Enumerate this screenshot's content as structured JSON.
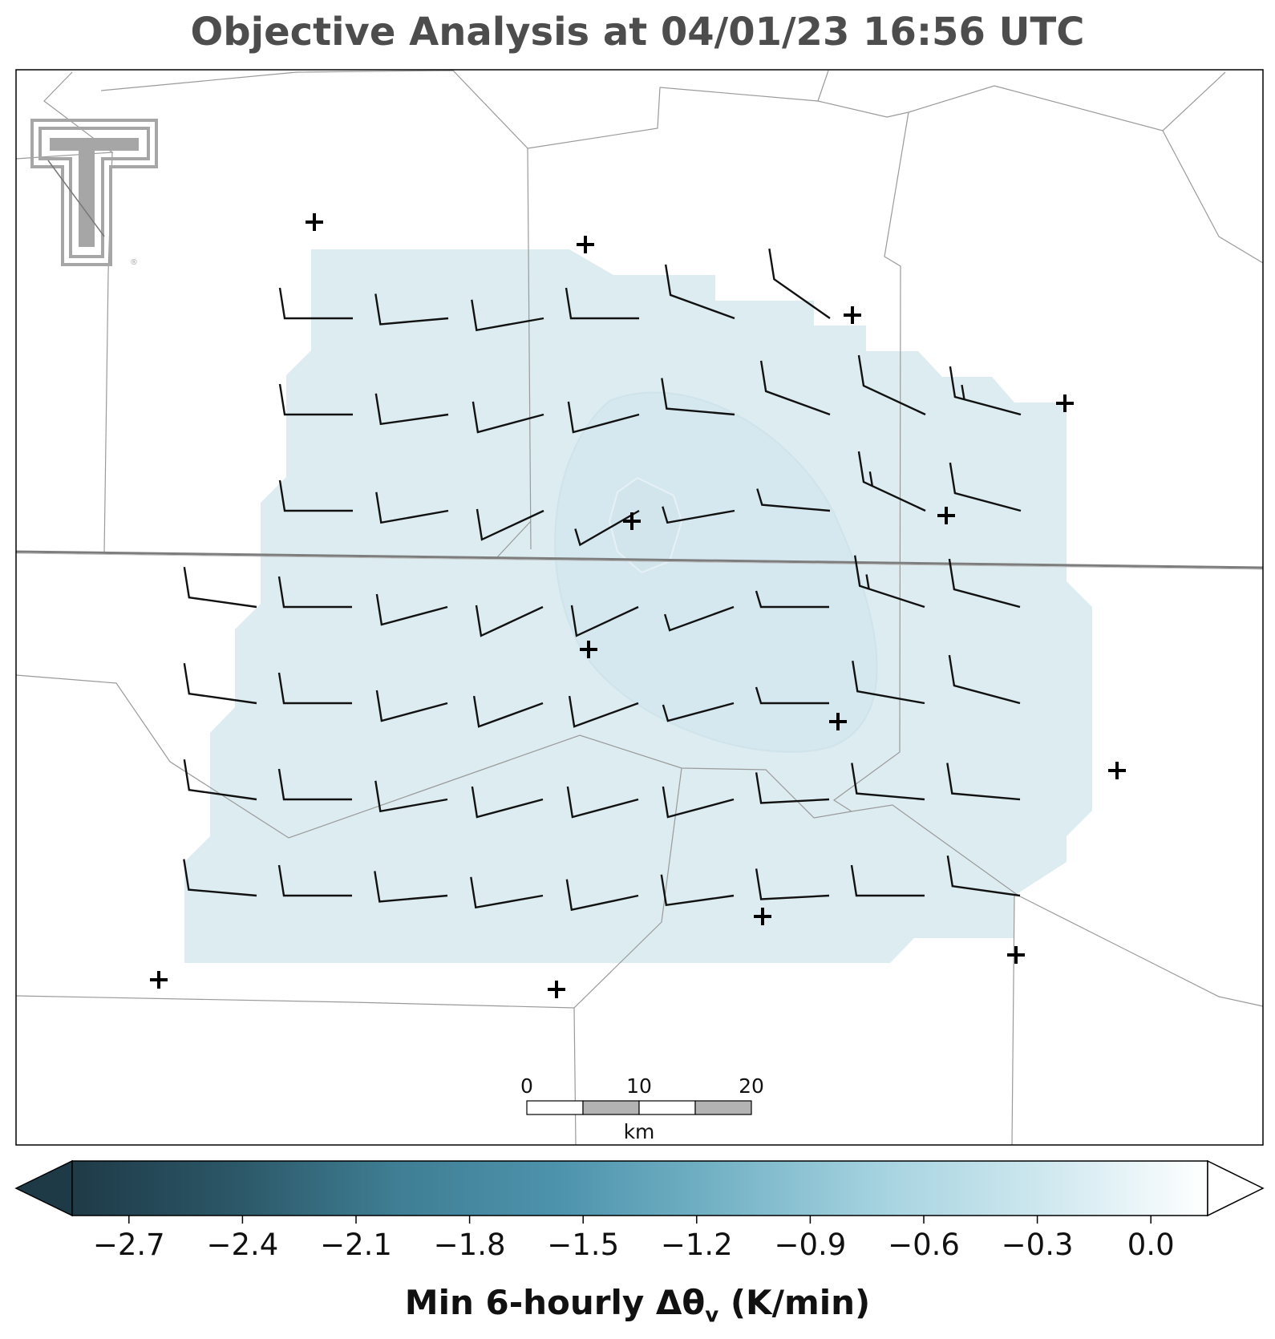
{
  "title": "Objective Analysis at 04/01/23 16:56 UTC",
  "colors": {
    "analysis_fill": "#dcecf1",
    "analysis_inner": "#d5e8ef",
    "county_lines": "#9a9a9a",
    "state_line": "#7d7d7d",
    "barb": "#111111",
    "station": "#000000",
    "logo": "#a6a6a6"
  },
  "logo": {
    "name": "Texas Tech double-T logo"
  },
  "stations": [
    [
      392,
      277
    ],
    [
      730,
      305
    ],
    [
      1063,
      393
    ],
    [
      1328,
      503
    ],
    [
      788,
      650
    ],
    [
      1180,
      643
    ],
    [
      734,
      810
    ],
    [
      1045,
      900
    ],
    [
      1393,
      961
    ],
    [
      951,
      1143
    ],
    [
      1267,
      1191
    ],
    [
      198,
      1222
    ],
    [
      694,
      1234
    ]
  ],
  "wind_barbs": {
    "barb_unit_note": "",
    "rows": [
      [
        [
          0,
          10
        ],
        [
          -5,
          10
        ],
        [
          -10,
          10
        ],
        [
          0,
          10
        ],
        [
          20,
          10
        ],
        [
          35,
          10
        ],
        null,
        null
      ],
      [
        [
          0,
          10
        ],
        [
          -8,
          10
        ],
        [
          -15,
          10
        ],
        [
          -15,
          10
        ],
        [
          5,
          10
        ],
        [
          20,
          10
        ],
        [
          25,
          10
        ],
        [
          15,
          15
        ]
      ],
      [
        [
          0,
          10
        ],
        [
          -10,
          10
        ],
        [
          -25,
          10
        ],
        [
          -30,
          5
        ],
        [
          -10,
          5
        ],
        [
          5,
          5
        ],
        [
          25,
          15
        ],
        [
          15,
          10
        ]
      ],
      [
        [
          8,
          10
        ],
        [
          0,
          10
        ],
        [
          -15,
          10
        ],
        [
          -25,
          10
        ],
        [
          -25,
          10
        ],
        [
          -20,
          5
        ],
        [
          0,
          5
        ],
        [
          18,
          15
        ],
        [
          15,
          10
        ]
      ],
      [
        [
          8,
          10
        ],
        [
          0,
          10
        ],
        [
          -15,
          10
        ],
        [
          -20,
          10
        ],
        [
          -20,
          10
        ],
        [
          -15,
          5
        ],
        [
          0,
          5
        ],
        [
          10,
          10
        ],
        [
          15,
          10
        ]
      ],
      [
        [
          8,
          10
        ],
        [
          0,
          10
        ],
        [
          -10,
          10
        ],
        [
          -15,
          10
        ],
        [
          -15,
          10
        ],
        [
          -15,
          10
        ],
        [
          -3,
          10
        ],
        [
          5,
          10
        ],
        [
          5,
          10
        ]
      ],
      [
        [
          5,
          10
        ],
        [
          0,
          10
        ],
        [
          -5,
          10
        ],
        [
          -10,
          10
        ],
        [
          -12,
          10
        ],
        [
          -8,
          10
        ],
        [
          -3,
          10
        ],
        [
          0,
          10
        ],
        [
          8,
          10
        ]
      ]
    ]
  },
  "scale_bar": {
    "labels": [
      "0",
      "10",
      "20"
    ],
    "unit": "km"
  },
  "colorbar": {
    "label_main": "Min 6-hourly Δθ",
    "label_sub": "v",
    "label_tail": " (K/min)",
    "vmin": -2.85,
    "vmax": 0.15,
    "ticks": [
      "−2.7",
      "−2.4",
      "−2.1",
      "−1.8",
      "−1.5",
      "−1.2",
      "−0.9",
      "−0.6",
      "−0.3",
      "0.0"
    ],
    "tick_values": [
      -2.7,
      -2.4,
      -2.1,
      -1.8,
      -1.5,
      -1.2,
      -0.9,
      -0.6,
      -0.3,
      0.0
    ],
    "color_stops": [
      "#1f3a47",
      "#2b5767",
      "#3f7e94",
      "#4d93ac",
      "#75b3c6",
      "#a6d3e0",
      "#cfe8ef",
      "#ffffff"
    ],
    "extend": "both"
  }
}
